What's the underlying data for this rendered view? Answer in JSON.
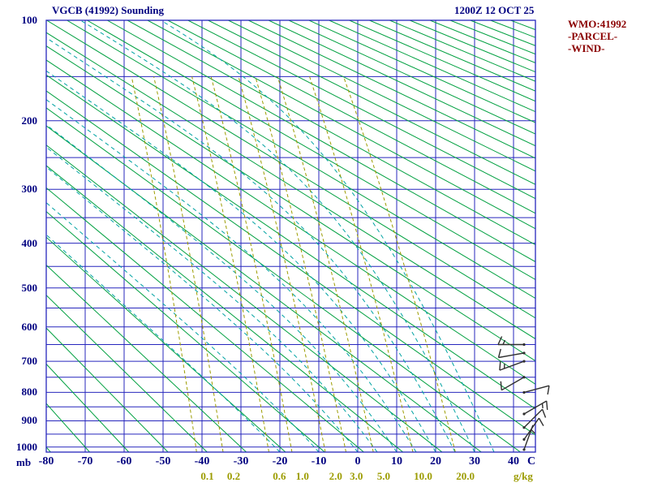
{
  "header": {
    "title": "VGCB (41992) Sounding",
    "datetime": "1200Z 12 OCT 25"
  },
  "legend": {
    "station": "WMO:41992",
    "parcel": "-PARCEL-",
    "wind": "-WIND-"
  },
  "axes": {
    "pressure_unit": "mb",
    "temp_unit": "C",
    "mixing_unit": "g/kg"
  },
  "chart_data": {
    "type": "line",
    "diagram": "stuve-sounding",
    "station": "VGCB (41992)",
    "valid_time": "1200Z 12 OCT 25",
    "pressure_axis": {
      "unit": "mb",
      "range": [
        100,
        1020
      ],
      "scale": "p^0.2857 (Stuve)",
      "labels": [
        100,
        200,
        300,
        400,
        500,
        600,
        700,
        800,
        900,
        1000
      ],
      "gridlines": [
        100,
        150,
        200,
        250,
        300,
        350,
        400,
        450,
        500,
        550,
        600,
        650,
        700,
        750,
        800,
        850,
        900,
        950,
        1000
      ]
    },
    "temp_axis": {
      "unit": "C",
      "range": [
        -80,
        40
      ],
      "ticks": [
        -80,
        -70,
        -60,
        -50,
        -40,
        -30,
        -20,
        -10,
        0,
        10,
        20,
        30,
        40
      ]
    },
    "dry_adiabats": {
      "theta_c_min": -80,
      "theta_c_max": 330,
      "step_c": 10
    },
    "moist_adiabats_thetaw_c": [
      -20,
      -10,
      0,
      5,
      10,
      15,
      20,
      25,
      30,
      35
    ],
    "mixing_ratio_lines": [
      {
        "value": 0.1,
        "label": "0.1"
      },
      {
        "value": 0.2,
        "label": "0.2"
      },
      {
        "value": 0.6,
        "label": "0.6"
      },
      {
        "value": 1.0,
        "label": "1.0"
      },
      {
        "value": 2.0,
        "label": "2.0"
      },
      {
        "value": 3.0,
        "label": "3.0"
      },
      {
        "value": 5.0,
        "label": "5.0"
      },
      {
        "value": 10.0,
        "label": "10.0"
      },
      {
        "value": 20.0,
        "label": "20.0"
      }
    ],
    "winds": [
      {
        "p": 1010,
        "dir": 20,
        "spd": 5
      },
      {
        "p": 970,
        "dir": 35,
        "spd": 10
      },
      {
        "p": 925,
        "dir": 45,
        "spd": 10
      },
      {
        "p": 875,
        "dir": 60,
        "spd": 15
      },
      {
        "p": 800,
        "dir": 75,
        "spd": 10
      },
      {
        "p": 750,
        "dir": 240,
        "spd": 10
      },
      {
        "p": 700,
        "dir": 250,
        "spd": 15
      },
      {
        "p": 675,
        "dir": 260,
        "spd": 10
      },
      {
        "p": 650,
        "dir": 270,
        "spd": 15
      }
    ],
    "wind_unit": "kt",
    "colors": {
      "frame": "#2727bd",
      "grid": "#2727bd",
      "label": "#000080",
      "dry_adiabat": "#00A040",
      "moist_adiabat": "#00A3A3",
      "mixing_ratio": "#9C9C00",
      "wind": "#2f2f2f",
      "title": "#000080",
      "legend": "#8B0000"
    }
  }
}
